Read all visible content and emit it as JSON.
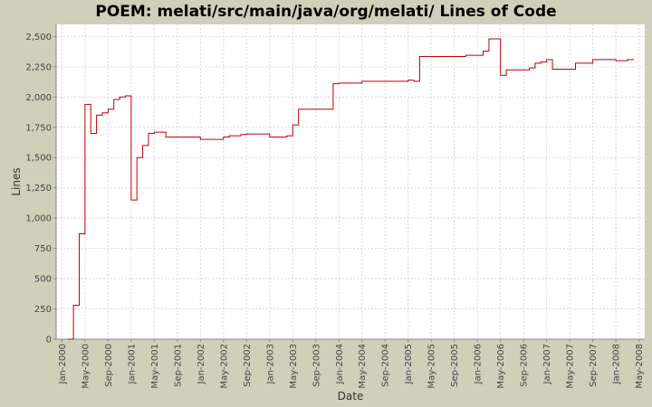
{
  "chart_data": {
    "type": "line",
    "step": true,
    "title": "POEM: melati/src/main/java/org/melati/ Lines of Code",
    "x_label": "Date",
    "y_label": "Lines",
    "series": [
      {
        "name": "Lines",
        "color": "#c00000",
        "x": [
          "2000-02",
          "2000-03",
          "2000-04",
          "2000-05",
          "2000-06",
          "2000-07",
          "2000-08",
          "2000-09",
          "2000-10",
          "2000-11",
          "2000-12",
          "2001-01",
          "2001-02",
          "2001-03",
          "2001-04",
          "2001-05",
          "2001-06",
          "2001-07",
          "2001-08",
          "2001-09",
          "2001-10",
          "2001-11",
          "2001-12",
          "2002-01",
          "2002-02",
          "2002-03",
          "2002-04",
          "2002-05",
          "2002-06",
          "2002-07",
          "2002-08",
          "2002-09",
          "2002-10",
          "2002-11",
          "2002-12",
          "2003-01",
          "2003-02",
          "2003-03",
          "2003-04",
          "2003-05",
          "2003-06",
          "2003-07",
          "2003-08",
          "2003-09",
          "2003-10",
          "2003-11",
          "2003-12",
          "2004-01",
          "2004-02",
          "2004-03",
          "2004-04",
          "2004-05",
          "2004-06",
          "2004-07",
          "2004-08",
          "2004-09",
          "2004-10",
          "2004-11",
          "2004-12",
          "2005-01",
          "2005-02",
          "2005-03",
          "2005-04",
          "2005-05",
          "2005-06",
          "2005-07",
          "2005-08",
          "2005-09",
          "2005-10",
          "2005-11",
          "2005-12",
          "2006-01",
          "2006-02",
          "2006-03",
          "2006-04",
          "2006-05",
          "2006-06",
          "2006-07",
          "2006-08",
          "2006-09",
          "2006-10",
          "2006-11",
          "2006-12",
          "2007-01",
          "2007-02",
          "2007-03",
          "2007-04",
          "2007-05",
          "2007-06",
          "2007-07",
          "2007-08",
          "2007-09",
          "2007-10",
          "2007-11",
          "2007-12",
          "2008-01",
          "2008-02",
          "2008-03",
          "2008-04"
        ],
        "values": [
          0,
          280,
          870,
          1940,
          1700,
          1850,
          1870,
          1900,
          1980,
          2000,
          2010,
          1150,
          1500,
          1600,
          1700,
          1710,
          1710,
          1670,
          1670,
          1670,
          1670,
          1670,
          1670,
          1650,
          1650,
          1650,
          1650,
          1670,
          1680,
          1680,
          1690,
          1695,
          1695,
          1695,
          1695,
          1670,
          1670,
          1670,
          1680,
          1770,
          1900,
          1900,
          1900,
          1900,
          1900,
          1900,
          2110,
          2115,
          2115,
          2115,
          2115,
          2130,
          2130,
          2130,
          2130,
          2130,
          2130,
          2130,
          2130,
          2140,
          2130,
          2335,
          2335,
          2335,
          2335,
          2335,
          2335,
          2335,
          2335,
          2345,
          2345,
          2345,
          2380,
          2480,
          2480,
          2180,
          2225,
          2225,
          2225,
          2225,
          2240,
          2280,
          2290,
          2310,
          2230,
          2230,
          2230,
          2230,
          2280,
          2280,
          2280,
          2310,
          2310,
          2310,
          2310,
          2300,
          2300,
          2310,
          2315
        ]
      }
    ],
    "xlim": [
      "1999-12",
      "2008-06"
    ],
    "xticks": [
      {
        "value": "2000-01",
        "label": "Jan-2000"
      },
      {
        "value": "2000-05",
        "label": "May-2000"
      },
      {
        "value": "2000-09",
        "label": "Sep-2000"
      },
      {
        "value": "2001-01",
        "label": "Jan-2001"
      },
      {
        "value": "2001-05",
        "label": "May-2001"
      },
      {
        "value": "2001-09",
        "label": "Sep-2001"
      },
      {
        "value": "2002-01",
        "label": "Jan-2002"
      },
      {
        "value": "2002-05",
        "label": "May-2002"
      },
      {
        "value": "2002-09",
        "label": "Sep-2002"
      },
      {
        "value": "2003-01",
        "label": "Jan-2003"
      },
      {
        "value": "2003-05",
        "label": "May-2003"
      },
      {
        "value": "2003-09",
        "label": "Sep-2003"
      },
      {
        "value": "2004-01",
        "label": "Jan-2004"
      },
      {
        "value": "2004-05",
        "label": "May-2004"
      },
      {
        "value": "2004-09",
        "label": "Sep-2004"
      },
      {
        "value": "2005-01",
        "label": "Jan-2005"
      },
      {
        "value": "2005-05",
        "label": "May-2005"
      },
      {
        "value": "2005-09",
        "label": "Sep-2005"
      },
      {
        "value": "2006-01",
        "label": "Jan-2006"
      },
      {
        "value": "2006-05",
        "label": "May-2006"
      },
      {
        "value": "2006-09",
        "label": "Sep-2006"
      },
      {
        "value": "2007-01",
        "label": "Jan-2007"
      },
      {
        "value": "2007-05",
        "label": "May-2007"
      },
      {
        "value": "2007-09",
        "label": "Sep-2007"
      },
      {
        "value": "2008-01",
        "label": "Jan-2008"
      },
      {
        "value": "2008-05",
        "label": "May-2008"
      }
    ],
    "ylim": [
      0,
      2600
    ],
    "yticks": [
      0,
      {
        "value": 250,
        "label": "250"
      },
      {
        "value": 500,
        "label": "500"
      },
      {
        "value": 750,
        "label": "750"
      },
      {
        "value": 1000,
        "label": "1,000"
      },
      {
        "value": 1250,
        "label": "1,250"
      },
      {
        "value": 1500,
        "label": "1,500"
      },
      {
        "value": 1750,
        "label": "1,750"
      },
      {
        "value": 2000,
        "label": "2,000"
      },
      {
        "value": 2250,
        "label": "2,250"
      },
      {
        "value": 2500,
        "label": "2,500"
      }
    ],
    "grid": true
  }
}
